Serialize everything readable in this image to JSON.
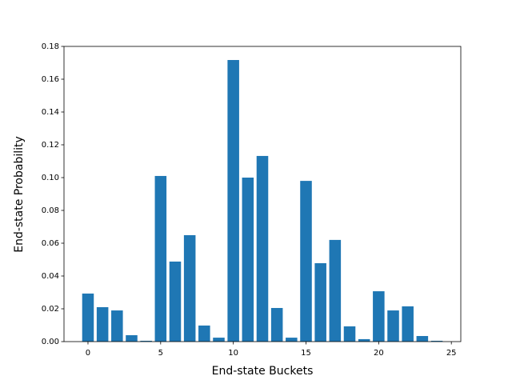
{
  "chart_data": {
    "type": "bar",
    "xlabel": "End-state Buckets",
    "ylabel": "End-state Probability",
    "x": [
      0,
      1,
      2,
      3,
      4,
      5,
      6,
      7,
      8,
      9,
      10,
      11,
      12,
      13,
      14,
      15,
      16,
      17,
      18,
      19,
      20,
      21,
      22,
      23,
      24
    ],
    "values": [
      0.0293,
      0.021,
      0.019,
      0.0039,
      0.0005,
      0.101,
      0.0488,
      0.0649,
      0.0098,
      0.0024,
      0.1717,
      0.1,
      0.1132,
      0.0205,
      0.0024,
      0.098,
      0.0478,
      0.062,
      0.0093,
      0.0015,
      0.0307,
      0.019,
      0.0215,
      0.0034,
      0.0005
    ],
    "color": "#1f77b4",
    "xlim": [
      -1.65,
      25.65
    ],
    "xticks": [
      0,
      5,
      10,
      15,
      20,
      25
    ],
    "ylim": [
      0,
      0.18
    ],
    "yticks": [
      {
        "value": 0,
        "label": "0.00"
      },
      {
        "value": 0.02,
        "label": "0.02"
      },
      {
        "value": 0.04,
        "label": "0.04"
      },
      {
        "value": 0.06,
        "label": "0.06"
      },
      {
        "value": 0.08,
        "label": "0.08"
      },
      {
        "value": 0.1,
        "label": "0.10"
      },
      {
        "value": 0.12,
        "label": "0.12"
      },
      {
        "value": 0.14,
        "label": "0.14"
      },
      {
        "value": 0.16,
        "label": "0.16"
      },
      {
        "value": 0.18,
        "label": "0.18"
      }
    ],
    "grid": false
  }
}
